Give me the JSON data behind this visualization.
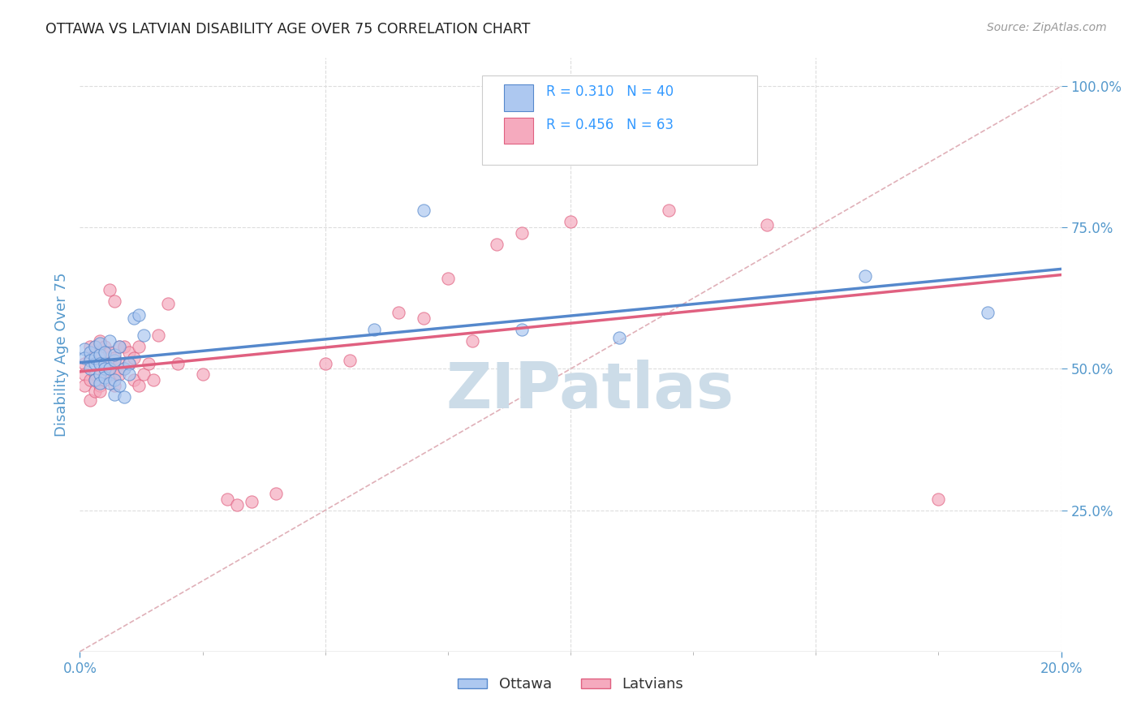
{
  "title": "OTTAWA VS LATVIAN DISABILITY AGE OVER 75 CORRELATION CHART",
  "source": "Source: ZipAtlas.com",
  "ylabel": "Disability Age Over 75",
  "legend_r_ottawa": "0.310",
  "legend_n_ottawa": "40",
  "legend_r_latvians": "0.456",
  "legend_n_latvians": "63",
  "ottawa_color": "#adc8f0",
  "latvians_color": "#f5aabe",
  "trendline_ottawa_color": "#5588cc",
  "trendline_latvians_color": "#e06080",
  "diagonal_color": "#cccccc",
  "background_color": "#ffffff",
  "grid_color": "#dddddd",
  "watermark_text": "ZIPatlas",
  "watermark_color": "#ccdce8",
  "title_color": "#222222",
  "axis_label_color": "#5599cc",
  "legend_text_color": "#333333",
  "legend_stat_color": "#3399ff",
  "ottawa_x": [
    0.001,
    0.001,
    0.002,
    0.002,
    0.002,
    0.003,
    0.003,
    0.003,
    0.003,
    0.004,
    0.004,
    0.004,
    0.004,
    0.004,
    0.005,
    0.005,
    0.005,
    0.005,
    0.006,
    0.006,
    0.006,
    0.007,
    0.007,
    0.007,
    0.007,
    0.008,
    0.008,
    0.009,
    0.009,
    0.01,
    0.01,
    0.011,
    0.012,
    0.013,
    0.06,
    0.07,
    0.09,
    0.11,
    0.16,
    0.185
  ],
  "ottawa_y": [
    0.535,
    0.52,
    0.53,
    0.515,
    0.5,
    0.54,
    0.51,
    0.48,
    0.52,
    0.49,
    0.525,
    0.51,
    0.545,
    0.475,
    0.51,
    0.5,
    0.53,
    0.485,
    0.5,
    0.55,
    0.475,
    0.515,
    0.48,
    0.455,
    0.525,
    0.47,
    0.54,
    0.45,
    0.5,
    0.51,
    0.49,
    0.59,
    0.595,
    0.56,
    0.57,
    0.78,
    0.57,
    0.555,
    0.665,
    0.6
  ],
  "latvians_x": [
    0.001,
    0.001,
    0.001,
    0.002,
    0.002,
    0.002,
    0.002,
    0.003,
    0.003,
    0.003,
    0.003,
    0.003,
    0.004,
    0.004,
    0.004,
    0.004,
    0.004,
    0.005,
    0.005,
    0.005,
    0.005,
    0.006,
    0.006,
    0.006,
    0.006,
    0.007,
    0.007,
    0.007,
    0.007,
    0.008,
    0.008,
    0.008,
    0.009,
    0.009,
    0.01,
    0.01,
    0.011,
    0.011,
    0.012,
    0.012,
    0.013,
    0.014,
    0.015,
    0.016,
    0.018,
    0.02,
    0.025,
    0.03,
    0.032,
    0.035,
    0.04,
    0.05,
    0.055,
    0.065,
    0.07,
    0.075,
    0.08,
    0.085,
    0.09,
    0.1,
    0.12,
    0.14,
    0.175
  ],
  "latvians_y": [
    0.51,
    0.49,
    0.47,
    0.54,
    0.52,
    0.48,
    0.445,
    0.54,
    0.49,
    0.52,
    0.46,
    0.48,
    0.53,
    0.51,
    0.55,
    0.47,
    0.46,
    0.54,
    0.5,
    0.49,
    0.48,
    0.53,
    0.64,
    0.49,
    0.51,
    0.52,
    0.47,
    0.62,
    0.49,
    0.51,
    0.54,
    0.49,
    0.54,
    0.5,
    0.53,
    0.51,
    0.48,
    0.52,
    0.47,
    0.54,
    0.49,
    0.51,
    0.48,
    0.56,
    0.615,
    0.51,
    0.49,
    0.27,
    0.26,
    0.265,
    0.28,
    0.51,
    0.515,
    0.6,
    0.59,
    0.66,
    0.55,
    0.72,
    0.74,
    0.76,
    0.78,
    0.755,
    0.27
  ],
  "xlim": [
    0.0,
    0.2
  ],
  "ylim": [
    0.0,
    1.05
  ],
  "figsize": [
    14.06,
    8.92
  ],
  "dpi": 100
}
